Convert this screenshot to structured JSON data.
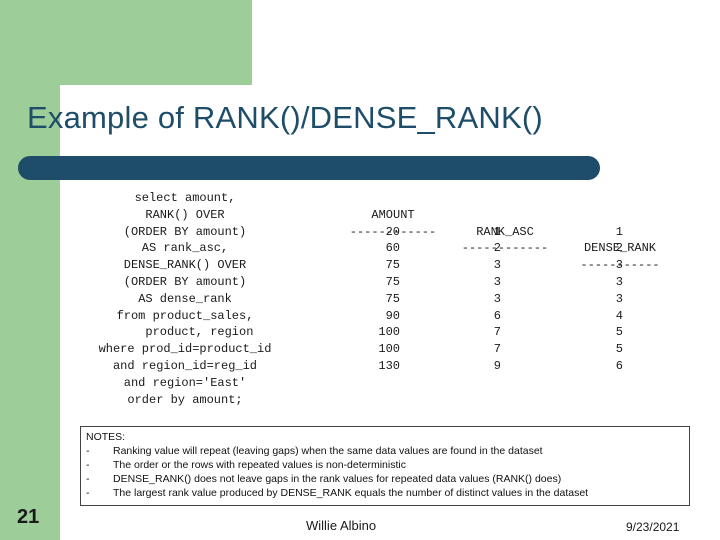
{
  "title": "Example of RANK()/DENSE_RANK()",
  "sql_lines": [
    "select amount,",
    "RANK() OVER",
    "(ORDER BY amount)",
    "AS rank_asc,",
    "DENSE_RANK() OVER",
    "(ORDER BY amount)",
    "AS dense_rank",
    "from product_sales,",
    "    product, region",
    "where prod_id=product_id",
    "and region_id=reg_id",
    "and region='East'",
    "order by amount;"
  ],
  "results": {
    "headers": [
      "AMOUNT",
      "RANK_ASC",
      "DENSE_RANK"
    ],
    "separators": [
      "------------",
      "------------",
      "-----------"
    ],
    "rows": [
      [
        "20",
        "1",
        "1"
      ],
      [
        "60",
        "2",
        "2"
      ],
      [
        "75",
        "3",
        "3"
      ],
      [
        "75",
        "3",
        "3"
      ],
      [
        "75",
        "3",
        "3"
      ],
      [
        "90",
        "6",
        "4"
      ],
      [
        "100",
        "7",
        "5"
      ],
      [
        "100",
        "7",
        "5"
      ],
      [
        "130",
        "9",
        "6"
      ]
    ]
  },
  "notes": {
    "heading": "NOTES:",
    "bullet": "-",
    "items": [
      "Ranking value will repeat (leaving gaps) when the same data values are found in the dataset",
      "The order or the rows with repeated values is non-deterministic",
      "DENSE_RANK() does not leave gaps in the rank values for repeated data values (RANK() does)",
      "The largest rank value produced by DENSE_RANK equals the number of distinct values in the dataset"
    ]
  },
  "footer": {
    "slide_number": "21",
    "author": "Willie Albino",
    "date": "9/23/2021"
  },
  "colors": {
    "accent_green": "#9dcd98",
    "title_blue": "#1e4d69"
  }
}
